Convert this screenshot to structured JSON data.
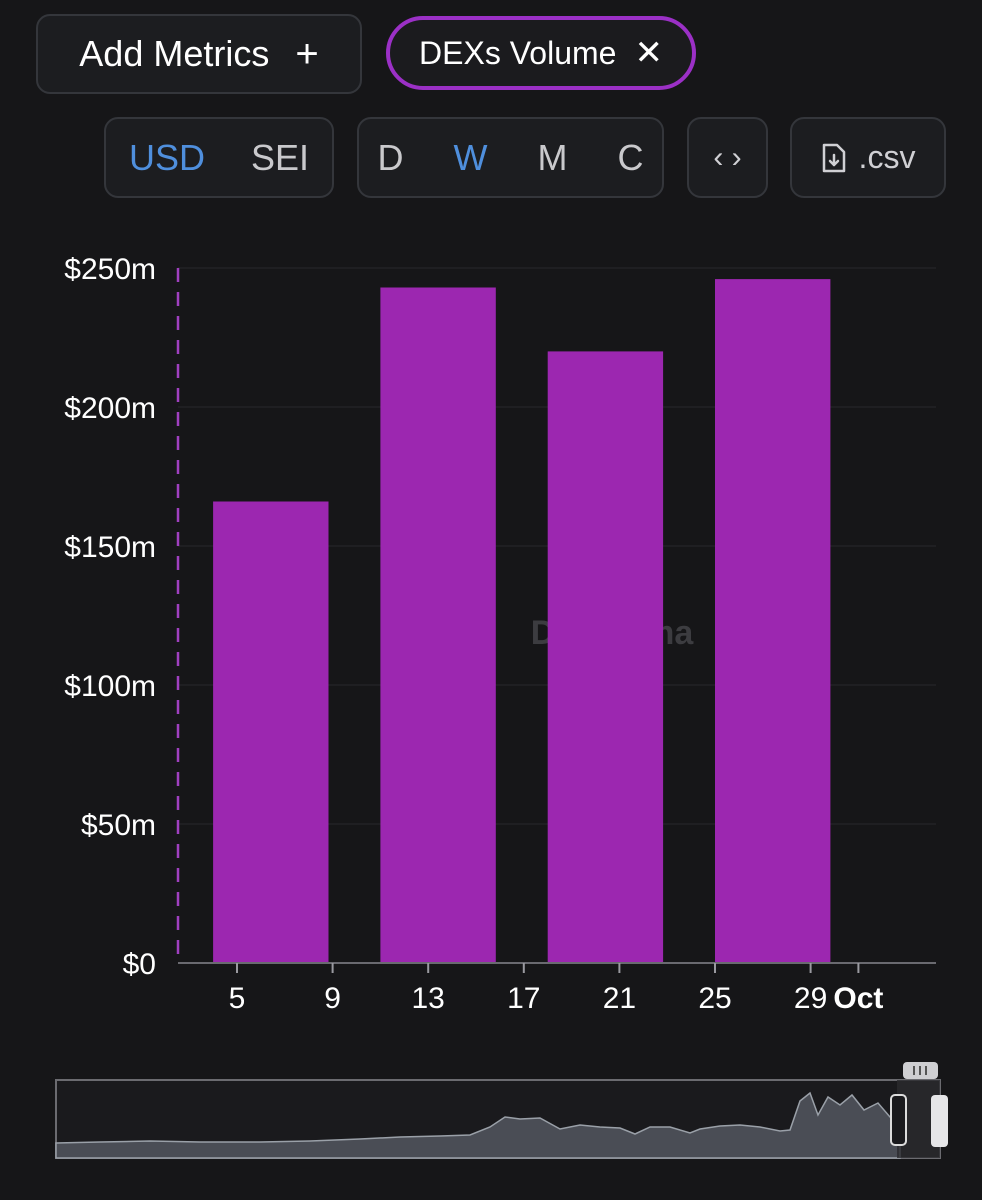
{
  "toolbar": {
    "add_metrics_label": "Add Metrics",
    "add_icon": "plus-icon",
    "active_metric_label": "DEXs Volume",
    "remove_icon": "close-icon",
    "currency_options": [
      "USD",
      "SEI"
    ],
    "currency_selected": "USD",
    "period_options": [
      "D",
      "W",
      "M",
      "C"
    ],
    "period_selected": "W",
    "embed_icon": "code-icon",
    "csv_icon": "file-download-icon",
    "csv_label": ".csv"
  },
  "colors": {
    "bar": "#9c27b0",
    "accent": "#9b30c6",
    "selected_text": "#4f8fdd",
    "background": "#161618"
  },
  "chart_data": {
    "type": "bar",
    "title": "",
    "xlabel": "",
    "ylabel": "",
    "watermark": "DefiLlama",
    "x_tick_labels": [
      "5",
      "9",
      "13",
      "17",
      "21",
      "25",
      "29",
      "Oct"
    ],
    "y_tick_labels": [
      "$0",
      "$50m",
      "$100m",
      "$150m",
      "$200m",
      "$250m"
    ],
    "ylim": [
      0,
      250000000
    ],
    "grid": true,
    "series": [
      {
        "name": "DEXs Volume",
        "x_start": [
          "2024-09-04",
          "2024-09-11",
          "2024-09-18",
          "2024-09-25"
        ],
        "values": [
          166000000,
          243000000,
          220000000,
          246000000
        ]
      }
    ]
  }
}
